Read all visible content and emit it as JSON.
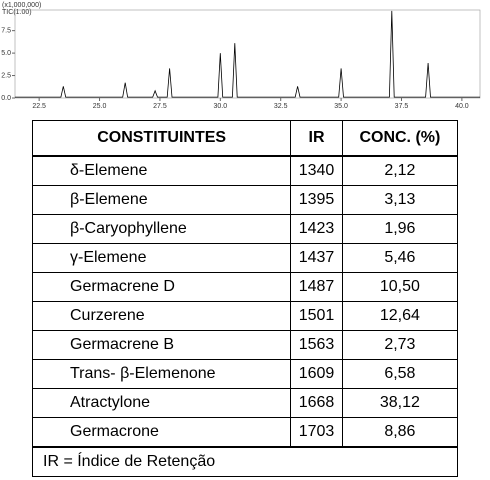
{
  "chart_data": {
    "type": "line",
    "scale_label": "(x1,000,000)",
    "trace_label": "TIC(1.00)",
    "x": [
      21.5,
      23.4,
      23.5,
      23.6,
      25.96,
      26.06,
      26.16,
      27.2,
      27.3,
      27.4,
      27.8,
      27.9,
      28.0,
      29.9,
      30.0,
      30.1,
      30.5,
      30.6,
      30.7,
      33.1,
      33.2,
      33.3,
      34.9,
      35.0,
      35.1,
      37.0,
      37.1,
      37.2,
      38.5,
      38.6,
      38.7,
      40.75
    ],
    "values": [
      0.1,
      0.1,
      1.3,
      0.1,
      0.1,
      1.7,
      0.1,
      0.1,
      0.8,
      0.1,
      0.1,
      3.3,
      0.1,
      0.1,
      5.0,
      0.1,
      0.1,
      6.1,
      0.1,
      0.1,
      1.3,
      0.1,
      0.1,
      3.3,
      0.1,
      0.1,
      9.7,
      0.1,
      0.1,
      3.9,
      0.1,
      0.1
    ],
    "color": "#000000",
    "xlim": [
      21.5,
      40.75
    ],
    "ylim": [
      0,
      9.8
    ],
    "xticks": [
      22.5,
      {
        "value": 25,
        "label": "25.0"
      },
      27.5,
      {
        "value": 30,
        "label": "30.0"
      },
      32.5,
      {
        "value": 35,
        "label": "35.0"
      },
      37.5,
      {
        "value": 40,
        "label": "40.0"
      }
    ],
    "yticks": [
      {
        "value": 0,
        "label": "0.0"
      },
      2.5,
      {
        "value": 5,
        "label": "5.0"
      },
      7.5
    ]
  },
  "table": {
    "header": [
      "CONSTITUINTES",
      "IR",
      "CONC. (%)"
    ],
    "rows": [
      [
        "δ-Elemene",
        "1340",
        "2,12"
      ],
      [
        "β-Elemene",
        "1395",
        "3,13"
      ],
      [
        "β-Caryophyllene",
        "1423",
        "1,96"
      ],
      [
        "γ-Elemene",
        "1437",
        "5,46"
      ],
      [
        "Germacrene D",
        "1487",
        "10,50"
      ],
      [
        "Curzerene",
        "1501",
        "12,64"
      ],
      [
        "Germacrene B",
        "1563",
        "2,73"
      ],
      [
        "Trans- β-Elemenone",
        "1609",
        "6,58"
      ],
      [
        "Atractylone",
        "1668",
        "38,12"
      ],
      [
        "Germacrone",
        "1703",
        "8,86"
      ]
    ],
    "footnote": "IR = Índice de Retenção"
  }
}
